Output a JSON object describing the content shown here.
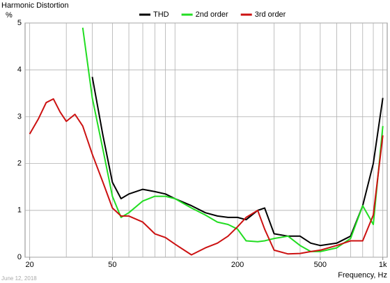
{
  "chart_data": {
    "type": "line",
    "title": "Harmonic Distortion",
    "ylabel": "%",
    "xlabel": "Frequency, Hz",
    "footnote": "June 12, 2018",
    "log_x": true,
    "grid": true,
    "x": [
      20,
      22,
      24,
      26,
      28,
      30,
      33,
      36,
      40,
      45,
      50,
      55,
      60,
      70,
      80,
      90,
      100,
      120,
      140,
      160,
      180,
      200,
      220,
      250,
      270,
      300,
      350,
      400,
      450,
      500,
      600,
      700,
      800,
      900,
      1000
    ],
    "series": [
      {
        "name": "THD",
        "color": "#000000",
        "values": [
          null,
          null,
          null,
          null,
          null,
          null,
          null,
          null,
          3.85,
          2.6,
          1.6,
          1.25,
          1.35,
          1.45,
          1.4,
          1.35,
          1.25,
          1.1,
          0.95,
          0.88,
          0.85,
          0.85,
          0.8,
          1.0,
          1.05,
          0.5,
          0.45,
          0.45,
          0.3,
          0.25,
          0.3,
          0.45,
          1.1,
          2.0,
          3.4
        ]
      },
      {
        "name": "2nd order",
        "color": "#22dd22",
        "values": [
          null,
          null,
          null,
          null,
          null,
          null,
          null,
          4.9,
          3.4,
          2.3,
          1.3,
          0.85,
          0.95,
          1.2,
          1.3,
          1.3,
          1.25,
          1.05,
          0.9,
          0.75,
          0.7,
          0.6,
          0.35,
          0.33,
          0.35,
          0.4,
          0.45,
          0.25,
          0.12,
          0.12,
          0.2,
          0.4,
          1.1,
          0.7,
          2.8
        ]
      },
      {
        "name": "3rd order",
        "color": "#cc1111",
        "values": [
          2.63,
          2.95,
          3.3,
          3.38,
          3.1,
          2.9,
          3.05,
          2.8,
          2.2,
          1.6,
          1.05,
          0.88,
          0.88,
          0.75,
          0.5,
          0.42,
          0.28,
          0.05,
          0.2,
          0.3,
          0.45,
          0.65,
          0.85,
          1.0,
          0.6,
          0.15,
          0.07,
          0.08,
          0.12,
          0.15,
          0.25,
          0.35,
          0.35,
          0.9,
          2.6
        ]
      }
    ],
    "xlim": [
      19,
      1050
    ],
    "xticks": [
      20,
      50,
      200,
      500,
      {
        "value": 1000,
        "label": "1k"
      }
    ],
    "ylim": [
      0,
      5
    ],
    "yticks": [
      0,
      1,
      2,
      3,
      4,
      5
    ]
  }
}
